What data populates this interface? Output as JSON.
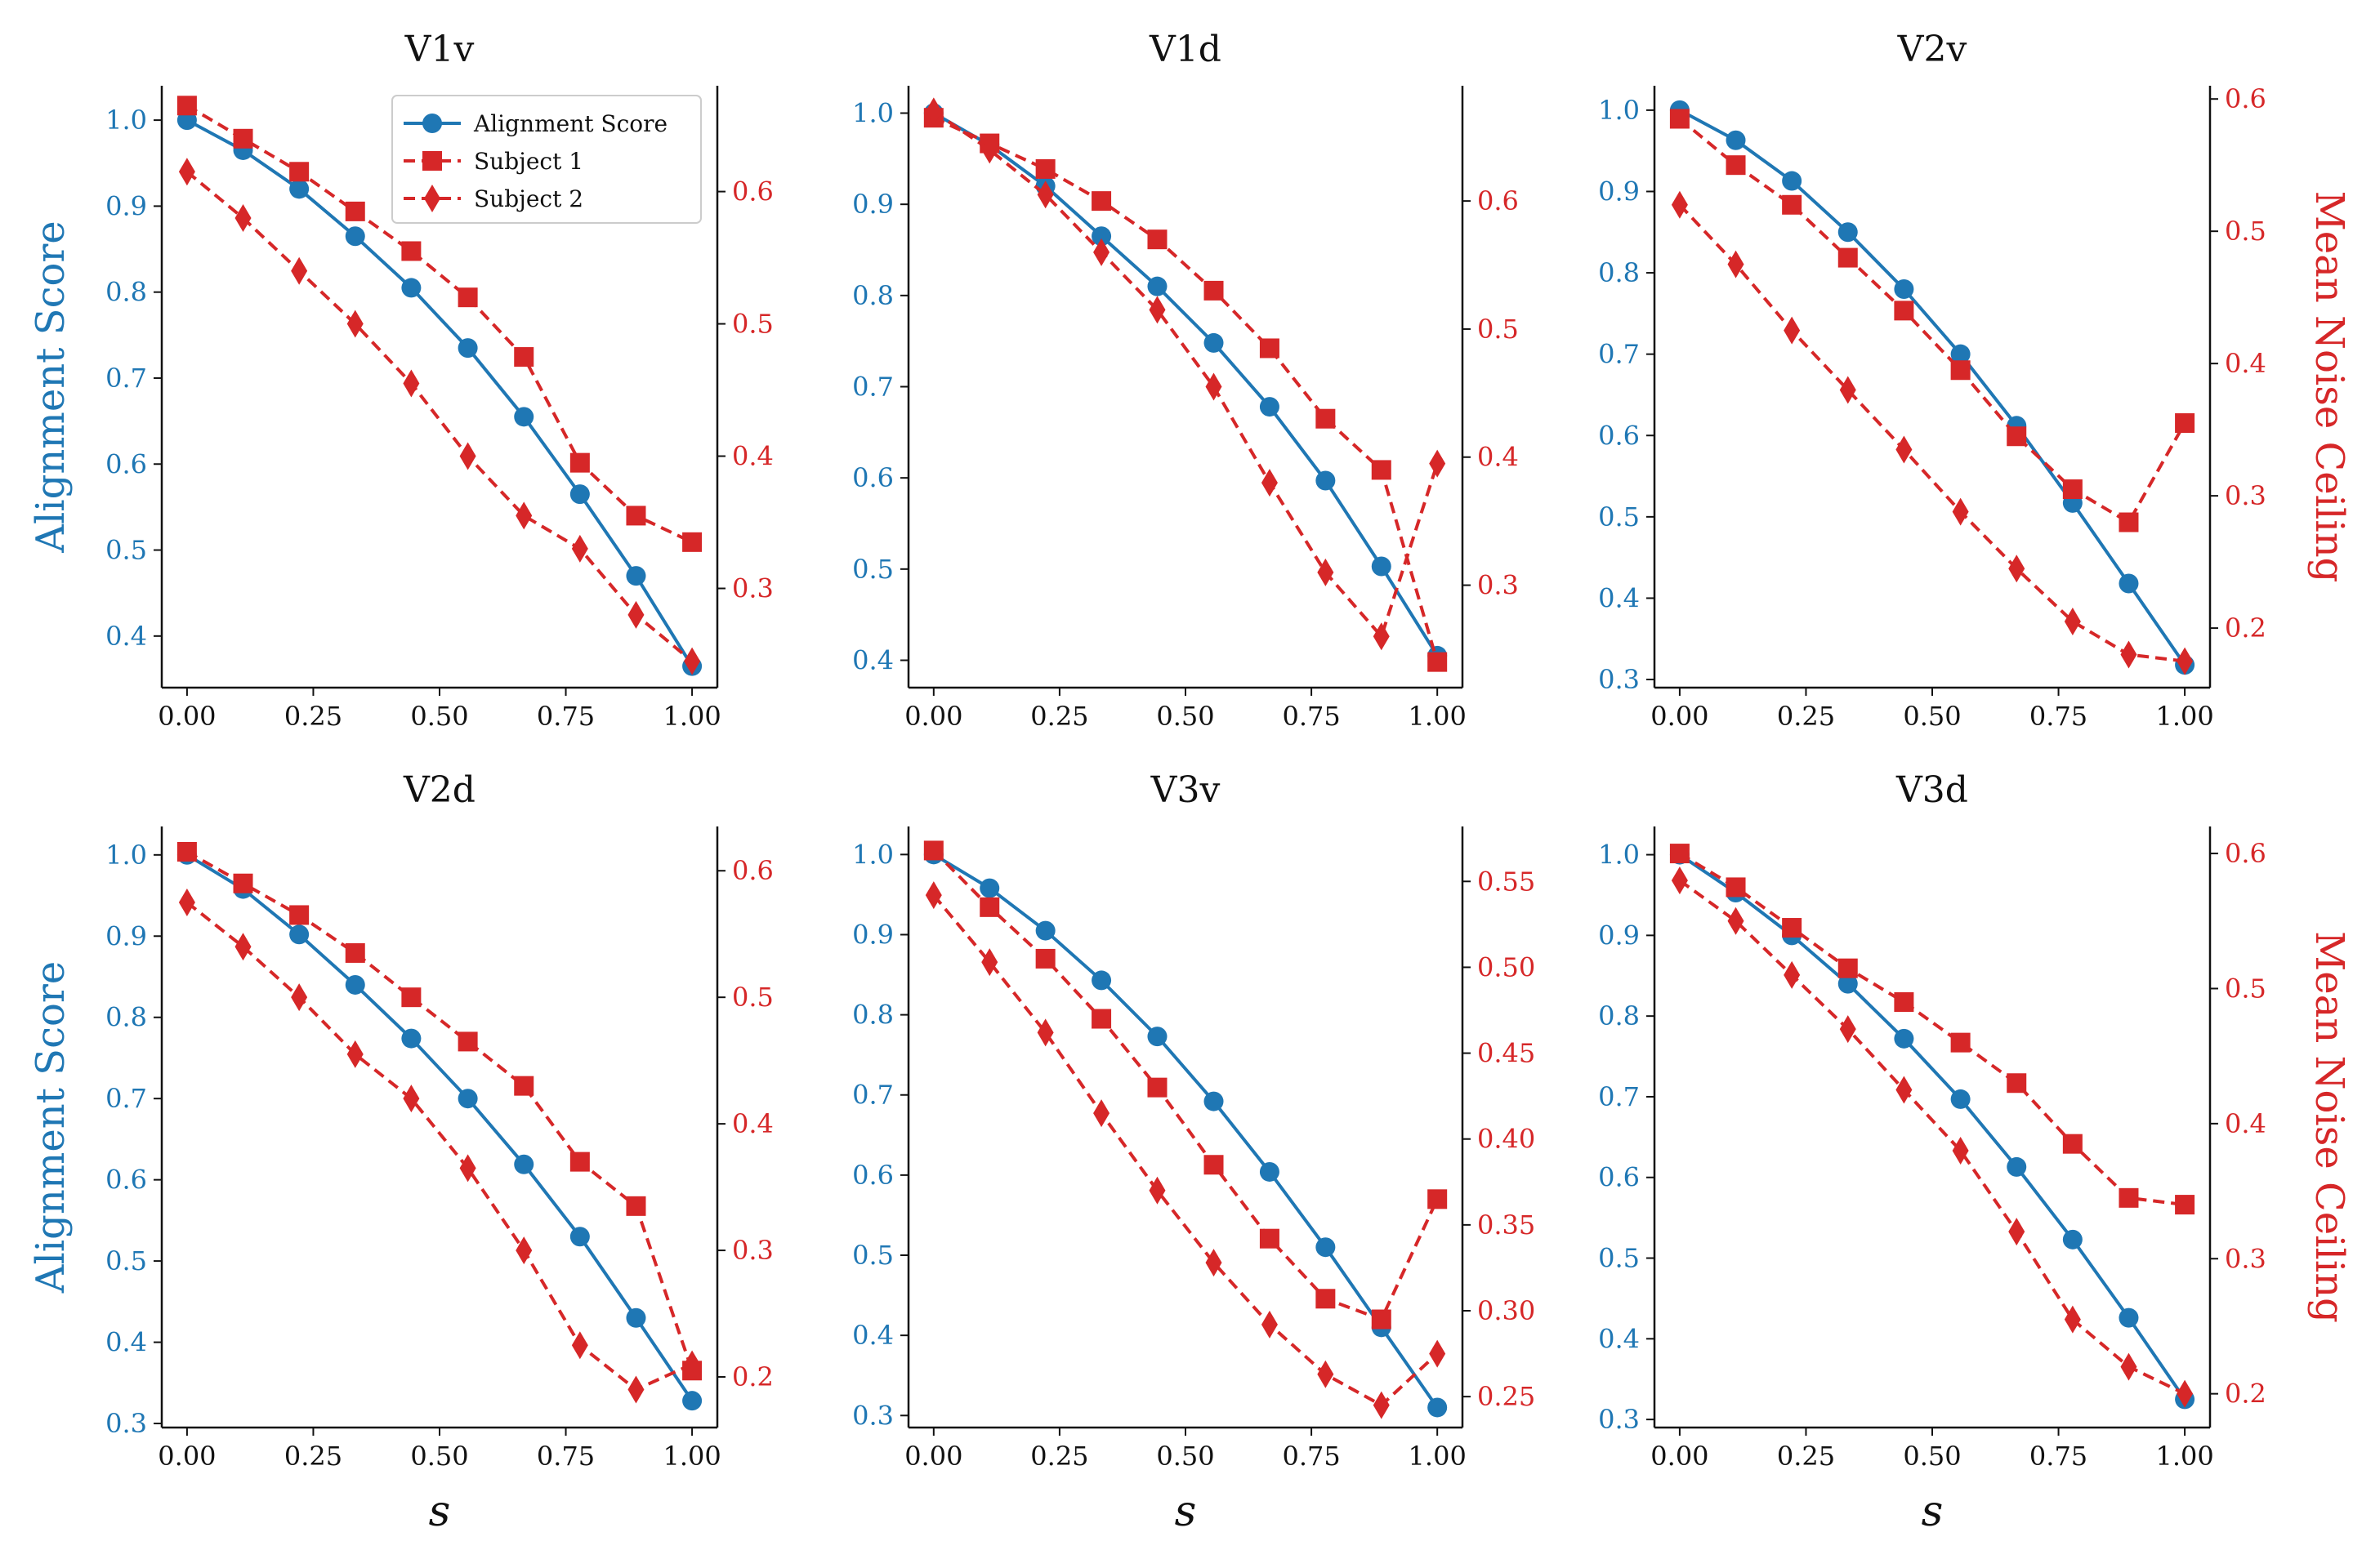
{
  "figure": {
    "x_values": [
      0.0,
      0.111,
      0.222,
      0.333,
      0.444,
      0.556,
      0.667,
      0.778,
      0.889,
      1.0
    ],
    "xticks": [
      "0.00",
      "0.25",
      "0.50",
      "0.75",
      "1.00"
    ],
    "xtick_values": [
      0,
      0.25,
      0.5,
      0.75,
      1.0
    ],
    "xlim": [
      -0.05,
      1.05
    ],
    "left_ylabel": "Alignment Score",
    "right_ylabel": "Mean Noise Ceiling",
    "xlabel": "s",
    "colors": {
      "alignment": "#1f77b4",
      "noise": "#d62728",
      "axis": "#111111"
    },
    "legend": {
      "entries": [
        {
          "label": "Alignment Score",
          "marker": "circle",
          "style": "solid",
          "color": "#1f77b4"
        },
        {
          "label": "Subject 1",
          "marker": "square",
          "style": "dashed",
          "color": "#d62728"
        },
        {
          "label": "Subject 2",
          "marker": "diamond",
          "style": "dashed",
          "color": "#d62728"
        }
      ]
    }
  },
  "chart_data": [
    {
      "type": "line",
      "title": "V1v",
      "xlabel": "",
      "ylabel": "Alignment Score",
      "right_ylabel": "",
      "ylim": [
        0.34,
        1.04
      ],
      "yticks": [
        "0.4",
        "0.5",
        "0.6",
        "0.7",
        "0.8",
        "0.9",
        "1.0"
      ],
      "ylim_right": [
        0.225,
        0.68
      ],
      "yticks_right": [
        "0.3",
        "0.4",
        "0.5",
        "0.6"
      ],
      "series": [
        {
          "name": "Alignment Score",
          "axis": "left",
          "values": [
            1.0,
            0.965,
            0.92,
            0.865,
            0.805,
            0.735,
            0.655,
            0.565,
            0.47,
            0.365
          ]
        },
        {
          "name": "Subject 1",
          "axis": "right",
          "values": [
            0.665,
            0.64,
            0.615,
            0.585,
            0.555,
            0.52,
            0.475,
            0.395,
            0.355,
            0.335
          ]
        },
        {
          "name": "Subject 2",
          "axis": "right",
          "values": [
            0.615,
            0.58,
            0.54,
            0.5,
            0.455,
            0.4,
            0.355,
            0.33,
            0.28,
            0.245
          ]
        }
      ]
    },
    {
      "type": "line",
      "title": "V1d",
      "xlabel": "",
      "ylabel": "",
      "right_ylabel": "",
      "ylim": [
        0.37,
        1.03
      ],
      "yticks": [
        "0.4",
        "0.5",
        "0.6",
        "0.7",
        "0.8",
        "0.9",
        "1.0"
      ],
      "ylim_right": [
        0.22,
        0.69
      ],
      "yticks_right": [
        "0.3",
        "0.4",
        "0.5",
        "0.6"
      ],
      "series": [
        {
          "name": "Alignment Score",
          "axis": "left",
          "values": [
            1.0,
            0.965,
            0.92,
            0.865,
            0.81,
            0.748,
            0.678,
            0.597,
            0.503,
            0.405
          ]
        },
        {
          "name": "Subject 1",
          "axis": "right",
          "values": [
            0.665,
            0.645,
            0.625,
            0.6,
            0.57,
            0.53,
            0.485,
            0.43,
            0.39,
            0.24
          ]
        },
        {
          "name": "Subject 2",
          "axis": "right",
          "values": [
            0.67,
            0.64,
            0.605,
            0.56,
            0.515,
            0.455,
            0.38,
            0.31,
            0.26,
            0.395
          ]
        }
      ]
    },
    {
      "type": "line",
      "title": "V2v",
      "xlabel": "",
      "ylabel": "",
      "right_ylabel": "Mean Noise Ceiling",
      "ylim": [
        0.29,
        1.03
      ],
      "yticks": [
        "0.3",
        "0.4",
        "0.5",
        "0.6",
        "0.7",
        "0.8",
        "0.9",
        "1.0"
      ],
      "ylim_right": [
        0.155,
        0.61
      ],
      "yticks_right": [
        "0.2",
        "0.3",
        "0.4",
        "0.5",
        "0.6"
      ],
      "series": [
        {
          "name": "Alignment Score",
          "axis": "left",
          "values": [
            1.0,
            0.963,
            0.913,
            0.85,
            0.78,
            0.7,
            0.612,
            0.517,
            0.418,
            0.318
          ]
        },
        {
          "name": "Subject 1",
          "axis": "right",
          "values": [
            0.585,
            0.55,
            0.52,
            0.48,
            0.44,
            0.395,
            0.345,
            0.305,
            0.28,
            0.355
          ]
        },
        {
          "name": "Subject 2",
          "axis": "right",
          "values": [
            0.52,
            0.475,
            0.425,
            0.38,
            0.335,
            0.288,
            0.245,
            0.205,
            0.18,
            0.175
          ]
        }
      ]
    },
    {
      "type": "line",
      "title": "V2d",
      "xlabel": "s",
      "ylabel": "Alignment Score",
      "right_ylabel": "",
      "ylim": [
        0.295,
        1.035
      ],
      "yticks": [
        "0.3",
        "0.4",
        "0.5",
        "0.6",
        "0.7",
        "0.8",
        "0.9",
        "1.0"
      ],
      "ylim_right": [
        0.16,
        0.635
      ],
      "yticks_right": [
        "0.2",
        "0.3",
        "0.4",
        "0.5",
        "0.6"
      ],
      "series": [
        {
          "name": "Alignment Score",
          "axis": "left",
          "values": [
            1.0,
            0.958,
            0.902,
            0.84,
            0.774,
            0.7,
            0.619,
            0.53,
            0.43,
            0.328
          ]
        },
        {
          "name": "Subject 1",
          "axis": "right",
          "values": [
            0.615,
            0.59,
            0.565,
            0.535,
            0.5,
            0.465,
            0.43,
            0.37,
            0.335,
            0.205
          ]
        },
        {
          "name": "Subject 2",
          "axis": "right",
          "values": [
            0.575,
            0.54,
            0.5,
            0.455,
            0.42,
            0.365,
            0.3,
            0.225,
            0.19,
            0.21
          ]
        }
      ]
    },
    {
      "type": "line",
      "title": "V3v",
      "xlabel": "s",
      "ylabel": "",
      "right_ylabel": "",
      "ylim": [
        0.285,
        1.035
      ],
      "yticks": [
        "0.3",
        "0.4",
        "0.5",
        "0.6",
        "0.7",
        "0.8",
        "0.9",
        "1.0"
      ],
      "ylim_right": [
        0.232,
        0.582
      ],
      "yticks_right": [
        "0.25",
        "0.30",
        "0.35",
        "0.40",
        "0.45",
        "0.50",
        "0.55"
      ],
      "series": [
        {
          "name": "Alignment Score",
          "axis": "left",
          "values": [
            1.0,
            0.958,
            0.905,
            0.843,
            0.773,
            0.692,
            0.604,
            0.51,
            0.41,
            0.31
          ]
        },
        {
          "name": "Subject 1",
          "axis": "right",
          "values": [
            0.568,
            0.535,
            0.505,
            0.47,
            0.43,
            0.385,
            0.342,
            0.307,
            0.295,
            0.365
          ]
        },
        {
          "name": "Subject 2",
          "axis": "right",
          "values": [
            0.542,
            0.503,
            0.462,
            0.415,
            0.37,
            0.328,
            0.292,
            0.263,
            0.245,
            0.275
          ]
        }
      ]
    },
    {
      "type": "line",
      "title": "V3d",
      "xlabel": "s",
      "ylabel": "",
      "right_ylabel": "Mean Noise Ceiling",
      "ylim": [
        0.29,
        1.035
      ],
      "yticks": [
        "0.3",
        "0.4",
        "0.5",
        "0.6",
        "0.7",
        "0.8",
        "0.9",
        "1.0"
      ],
      "ylim_right": [
        0.175,
        0.62
      ],
      "yticks_right": [
        "0.2",
        "0.3",
        "0.4",
        "0.5",
        "0.6"
      ],
      "series": [
        {
          "name": "Alignment Score",
          "axis": "left",
          "values": [
            1.0,
            0.953,
            0.9,
            0.84,
            0.772,
            0.697,
            0.613,
            0.523,
            0.426,
            0.325
          ]
        },
        {
          "name": "Subject 1",
          "axis": "right",
          "values": [
            0.6,
            0.575,
            0.545,
            0.515,
            0.49,
            0.46,
            0.43,
            0.385,
            0.345,
            0.34
          ]
        },
        {
          "name": "Subject 2",
          "axis": "right",
          "values": [
            0.58,
            0.55,
            0.51,
            0.47,
            0.425,
            0.38,
            0.32,
            0.255,
            0.22,
            0.2
          ]
        }
      ]
    }
  ]
}
